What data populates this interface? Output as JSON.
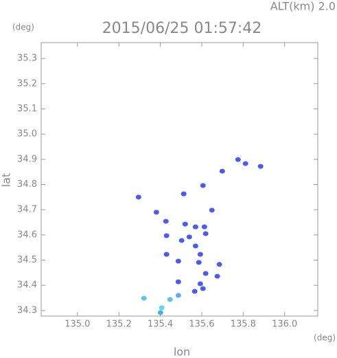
{
  "chart_data": {
    "type": "scatter",
    "title": "2015/06/25 01:57:42",
    "subtitle": "ALT(km) 2.0",
    "y_unit": "(deg)",
    "x_unit": "(deg)",
    "xlabel": "lon",
    "ylabel": "lat",
    "xlim": [
      134.825,
      136.16
    ],
    "ylim": [
      34.278,
      35.363
    ],
    "xticks": [
      {
        "value": 135,
        "label": "135.0"
      },
      135.2,
      135.4,
      135.6,
      135.8,
      {
        "value": 136,
        "label": "136.0"
      }
    ],
    "yticks": [
      34.3,
      34.4,
      34.5,
      34.6,
      34.7,
      34.8,
      34.9,
      {
        "value": 35,
        "label": "35.0"
      },
      35.1,
      35.2,
      35.3
    ],
    "x": [
      135.775,
      135.811,
      135.884,
      135.699,
      135.606,
      135.513,
      135.295,
      135.381,
      135.649,
      135.427,
      135.52,
      135.57,
      135.613,
      135.43,
      135.54,
      135.619,
      135.503,
      135.57,
      135.593,
      135.43,
      135.586,
      135.487,
      135.685,
      135.619,
      135.675,
      135.487,
      135.593,
      135.606,
      135.566,
      135.487,
      135.447,
      135.321,
      135.407,
      135.401
    ],
    "values": [
      34.899,
      34.883,
      34.872,
      34.853,
      34.796,
      34.763,
      34.75,
      34.69,
      34.698,
      34.654,
      34.643,
      34.632,
      34.632,
      34.597,
      34.592,
      34.605,
      34.578,
      34.556,
      34.523,
      34.523,
      34.491,
      34.496,
      34.483,
      34.447,
      34.436,
      34.414,
      34.406,
      34.387,
      34.376,
      34.36,
      34.344,
      34.349,
      34.311,
      34.292
    ],
    "colors": [
      "#4a5cf0",
      "#4a5cf0",
      "#4a5cf0",
      "#4a5cf0",
      "#4a5cf0",
      "#4a5cf0",
      "#4a5cf0",
      "#4a5cf0",
      "#4a5cf0",
      "#4a5cf0",
      "#4a5cf0",
      "#4a5cf0",
      "#4a5cf0",
      "#4a5cf0",
      "#4a5cf0",
      "#4a5cf0",
      "#4a5cf0",
      "#4a5cf0",
      "#4a5cf0",
      "#4a5cf0",
      "#4a5cf0",
      "#4a5cf0",
      "#4a5cf0",
      "#4a5cf0",
      "#4a5cf0",
      "#4a5cf0",
      "#4a5cf0",
      "#4a5cf0",
      "#4a5cf0",
      "#5fa8f5",
      "#5fc0f5",
      "#5fc0f5",
      "#5fd8f0",
      "#4ab0e8"
    ]
  }
}
